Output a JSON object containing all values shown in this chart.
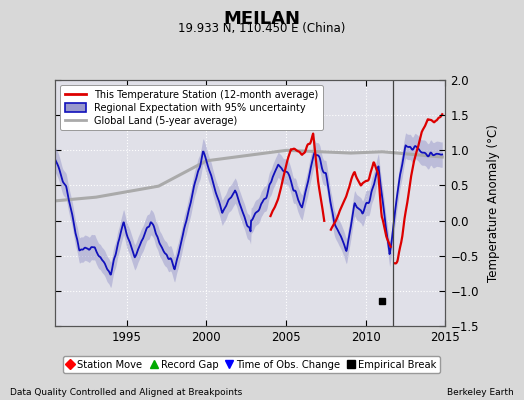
{
  "title": "MEILAN",
  "subtitle": "19.933 N, 110.450 E (China)",
  "ylabel": "Temperature Anomaly (°C)",
  "xlabel_left": "Data Quality Controlled and Aligned at Breakpoints",
  "xlabel_right": "Berkeley Earth",
  "xlim": [
    1990.5,
    2015.0
  ],
  "ylim": [
    -1.5,
    2.0
  ],
  "yticks": [
    -1.5,
    -1.0,
    -0.5,
    0.0,
    0.5,
    1.0,
    1.5,
    2.0
  ],
  "xticks": [
    1995,
    2000,
    2005,
    2010,
    2015
  ],
  "vertical_line_x": 2011.7,
  "empirical_break_x": 2011.0,
  "empirical_break_y": -1.15,
  "background_color": "#d8d8d8",
  "plot_bg_color": "#e0e0e8",
  "grid_color": "#ffffff",
  "blue_line_color": "#1111bb",
  "blue_fill_color": "#9999cc",
  "red_line_color": "#dd0000",
  "gray_line_color": "#aaaaaa",
  "legend1_entries": [
    "This Temperature Station (12-month average)",
    "Regional Expectation with 95% uncertainty",
    "Global Land (5-year average)"
  ],
  "legend2_entries": [
    "Station Move",
    "Record Gap",
    "Time of Obs. Change",
    "Empirical Break"
  ],
  "seed": 42
}
